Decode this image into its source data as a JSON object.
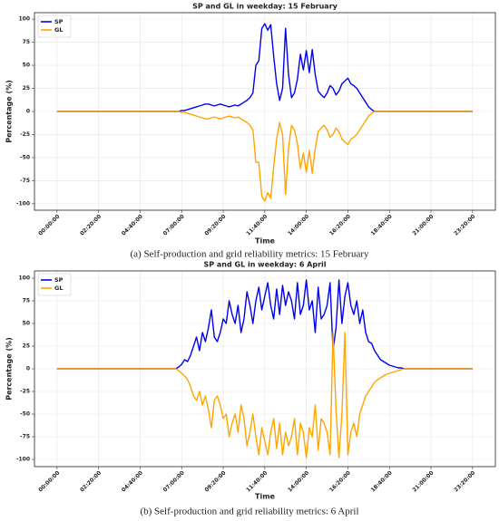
{
  "chart_data": [
    {
      "type": "line",
      "title": "SP and GL in weekday: 15 February",
      "xlabel": "Time",
      "ylabel": "Percentage (%)",
      "caption": "(a) Self-production and grid reliability metrics: 15 February",
      "grid": true,
      "legend": "upper left",
      "xlim": [
        -76,
        1477
      ],
      "ylim": [
        -107,
        107
      ],
      "yticks": [
        -100,
        -75,
        -50,
        -25,
        0,
        25,
        50,
        75,
        100
      ],
      "xticks": [
        {
          "value": 0,
          "label": "00:00:00"
        },
        {
          "value": 140,
          "label": "02:20:00"
        },
        {
          "value": 280,
          "label": "04:40:00"
        },
        {
          "value": 420,
          "label": "07:00:00"
        },
        {
          "value": 560,
          "label": "09:20:00"
        },
        {
          "value": 700,
          "label": "11:40:00"
        },
        {
          "value": 840,
          "label": "14:00:00"
        },
        {
          "value": 980,
          "label": "16:20:00"
        },
        {
          "value": 1120,
          "label": "18:40:00"
        },
        {
          "value": 1260,
          "label": "21:00:00"
        },
        {
          "value": 1400,
          "label": "23:20:00"
        }
      ],
      "x": [
        0,
        400,
        410,
        420,
        430,
        440,
        450,
        460,
        470,
        480,
        490,
        500,
        510,
        520,
        530,
        540,
        550,
        560,
        570,
        580,
        590,
        600,
        610,
        620,
        630,
        640,
        650,
        660,
        670,
        680,
        690,
        700,
        710,
        720,
        730,
        740,
        750,
        760,
        770,
        780,
        790,
        800,
        810,
        820,
        830,
        840,
        850,
        860,
        870,
        880,
        890,
        900,
        910,
        920,
        930,
        940,
        950,
        960,
        970,
        980,
        990,
        1000,
        1010,
        1020,
        1030,
        1040,
        1050,
        1060,
        1070,
        1080,
        1400
      ],
      "series": [
        {
          "name": "SP",
          "color": "#0000ee",
          "values": [
            0,
            0,
            0,
            1,
            1,
            2,
            3,
            4,
            5,
            6,
            7,
            8,
            8,
            7,
            6,
            7,
            8,
            7,
            6,
            5,
            6,
            7,
            6,
            8,
            10,
            12,
            15,
            20,
            50,
            55,
            90,
            95,
            88,
            94,
            60,
            30,
            12,
            25,
            90,
            40,
            15,
            20,
            35,
            62,
            45,
            66,
            42,
            67,
            40,
            22,
            18,
            15,
            20,
            28,
            25,
            18,
            22,
            30,
            33,
            36,
            30,
            28,
            25,
            20,
            15,
            10,
            5,
            2,
            0,
            0,
            0
          ]
        },
        {
          "name": "GL",
          "color": "#ffa500",
          "values": [
            0,
            0,
            0,
            -1,
            -1,
            -2,
            -3,
            -4,
            -5,
            -6,
            -7,
            -8,
            -8,
            -7,
            -6,
            -7,
            -8,
            -7,
            -6,
            -5,
            -6,
            -7,
            -6,
            -8,
            -10,
            -12,
            -15,
            -20,
            -55,
            -55,
            -92,
            -97,
            -88,
            -94,
            -60,
            -30,
            -12,
            -25,
            -90,
            -40,
            -15,
            -20,
            -35,
            -62,
            -45,
            -66,
            -42,
            -67,
            -40,
            -22,
            -18,
            -15,
            -20,
            -28,
            -25,
            -18,
            -22,
            -30,
            -33,
            -36,
            -30,
            -28,
            -25,
            -20,
            -15,
            -10,
            -5,
            -2,
            0,
            0,
            0
          ]
        }
      ]
    },
    {
      "type": "line",
      "title": "SP and GL in weekday: 6 April",
      "xlabel": "Time",
      "ylabel": "Percentage (%)",
      "caption": "(b) Self-production and grid reliability metrics: 6 April",
      "grid": true,
      "legend": "upper left",
      "xlim": [
        -76,
        1477
      ],
      "ylim": [
        -108,
        108
      ],
      "yticks": [
        -100,
        -75,
        -50,
        -25,
        0,
        25,
        50,
        75,
        100
      ],
      "xticks": [
        {
          "value": 0,
          "label": "00:00:00"
        },
        {
          "value": 140,
          "label": "02:20:00"
        },
        {
          "value": 280,
          "label": "04:40:00"
        },
        {
          "value": 420,
          "label": "07:00:00"
        },
        {
          "value": 560,
          "label": "09:20:00"
        },
        {
          "value": 700,
          "label": "11:40:00"
        },
        {
          "value": 840,
          "label": "14:00:00"
        },
        {
          "value": 980,
          "label": "16:20:00"
        },
        {
          "value": 1120,
          "label": "18:40:00"
        },
        {
          "value": 1260,
          "label": "21:00:00"
        },
        {
          "value": 1400,
          "label": "23:20:00"
        }
      ],
      "x": [
        0,
        400,
        410,
        420,
        430,
        440,
        450,
        460,
        470,
        480,
        490,
        500,
        510,
        520,
        530,
        540,
        550,
        560,
        570,
        580,
        590,
        600,
        610,
        620,
        630,
        640,
        650,
        660,
        670,
        680,
        690,
        700,
        710,
        720,
        730,
        740,
        750,
        760,
        770,
        780,
        790,
        800,
        810,
        820,
        830,
        840,
        850,
        860,
        870,
        880,
        890,
        900,
        910,
        920,
        930,
        940,
        950,
        960,
        970,
        980,
        990,
        1000,
        1010,
        1020,
        1030,
        1040,
        1050,
        1060,
        1070,
        1080,
        1090,
        1100,
        1110,
        1120,
        1130,
        1140,
        1150,
        1160,
        1170,
        1180,
        1400
      ],
      "series": [
        {
          "name": "SP",
          "color": "#0000ee",
          "values": [
            0,
            0,
            2,
            5,
            10,
            8,
            15,
            25,
            35,
            20,
            40,
            30,
            45,
            65,
            35,
            30,
            40,
            55,
            50,
            75,
            60,
            50,
            70,
            40,
            55,
            85,
            70,
            50,
            75,
            90,
            65,
            80,
            95,
            70,
            55,
            88,
            60,
            92,
            70,
            85,
            75,
            55,
            95,
            60,
            70,
            98,
            65,
            75,
            40,
            90,
            55,
            60,
            70,
            95,
            20,
            45,
            98,
            50,
            80,
            95,
            70,
            60,
            75,
            50,
            65,
            40,
            30,
            28,
            20,
            15,
            10,
            8,
            6,
            4,
            3,
            2,
            1,
            1,
            0,
            0,
            0
          ]
        },
        {
          "name": "GL",
          "color": "#ffa500",
          "values": [
            0,
            0,
            -2,
            -5,
            -8,
            -12,
            -20,
            -30,
            -35,
            -25,
            -40,
            -30,
            -45,
            -65,
            -35,
            -30,
            -40,
            -55,
            -50,
            -75,
            -60,
            -50,
            -70,
            -40,
            -55,
            -85,
            -70,
            -50,
            -75,
            -95,
            -65,
            -80,
            -95,
            -70,
            -55,
            -88,
            -60,
            -95,
            -70,
            -85,
            -75,
            -55,
            -95,
            -60,
            -70,
            -98,
            -65,
            -75,
            -40,
            -90,
            -55,
            -60,
            -70,
            -95,
            40,
            -45,
            -98,
            -50,
            40,
            -95,
            -70,
            -60,
            -75,
            -50,
            -40,
            -30,
            -25,
            -20,
            -15,
            -12,
            -10,
            -8,
            -6,
            -5,
            -4,
            -3,
            -2,
            -1,
            0,
            0,
            0
          ]
        }
      ]
    }
  ]
}
